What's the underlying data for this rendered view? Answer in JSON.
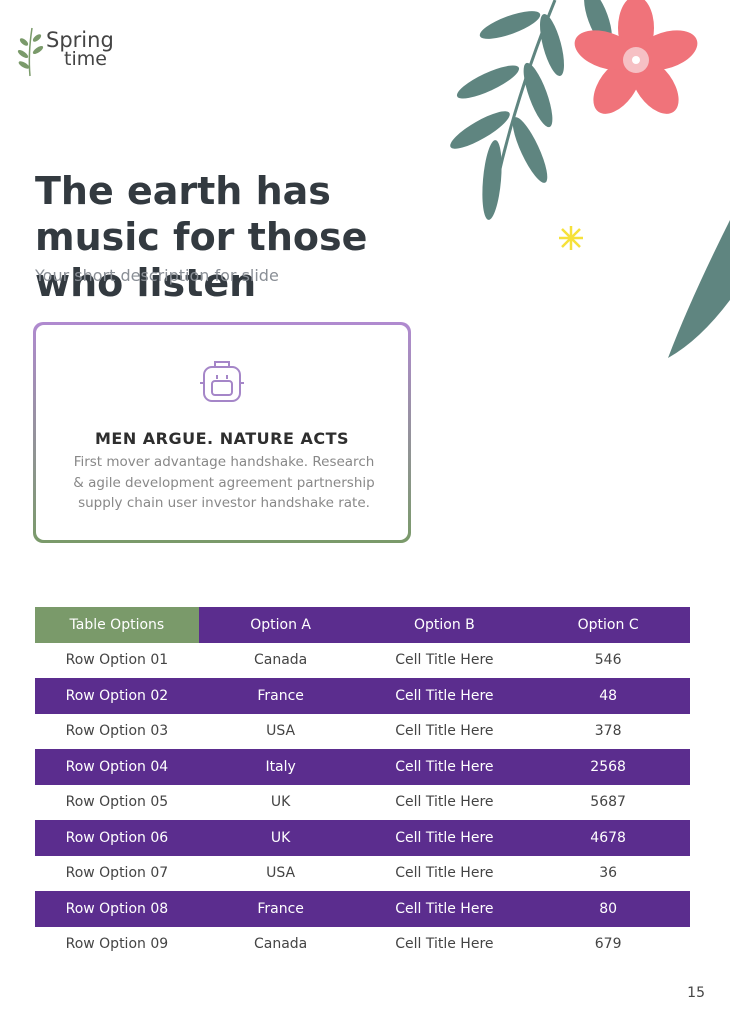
{
  "logo": {
    "top": "Spring",
    "bottom": "time"
  },
  "title": "The earth has music for those who listen",
  "subtitle": "Your short description for slide",
  "card": {
    "heading": "MEN ARGUE. NATURE ACTS",
    "body": "First mover advantage handshake. Research & agile development agreement partnership supply chain user investor handshake rate."
  },
  "table": {
    "header": [
      "Table Options",
      "Option A",
      "Option B",
      "Option C"
    ],
    "rows": [
      [
        "Row Option 01",
        "Canada",
        "Cell Title Here",
        "546"
      ],
      [
        "Row Option 02",
        "France",
        "Cell Title Here",
        "48"
      ],
      [
        "Row Option 03",
        "USA",
        "Cell Title Here",
        "378"
      ],
      [
        "Row Option 04",
        "Italy",
        "Cell Title Here",
        "2568"
      ],
      [
        "Row Option 05",
        "UK",
        "Cell Title Here",
        "5687"
      ],
      [
        "Row Option 06",
        "UK",
        "Cell Title Here",
        "4678"
      ],
      [
        "Row Option 07",
        "USA",
        "Cell Title Here",
        "36"
      ],
      [
        "Row Option 08",
        "France",
        "Cell Title Here",
        "80"
      ],
      [
        "Row Option 09",
        "Canada",
        "Cell Title Here",
        "679"
      ]
    ]
  },
  "page_number": "15"
}
